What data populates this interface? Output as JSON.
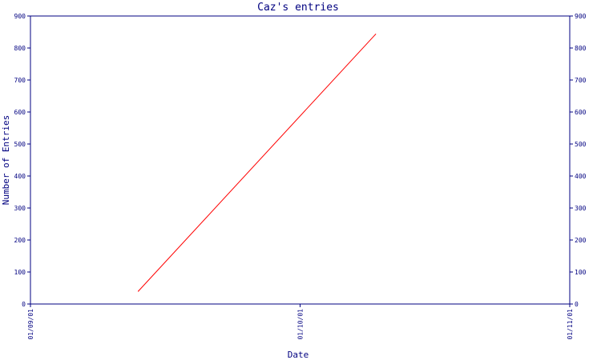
{
  "chart_data": {
    "type": "line",
    "title": "Caz's entries",
    "xlabel": "Date",
    "ylabel": "Number of Entries",
    "x_ticks": [
      "01/09/01",
      "01/10/01",
      "01/11/01"
    ],
    "y_ticks": [
      "0",
      "100",
      "200",
      "300",
      "400",
      "500",
      "600",
      "700",
      "800",
      "900"
    ],
    "xlim": [
      "01/09/01",
      "01/11/01"
    ],
    "ylim": [
      0,
      900
    ],
    "grid": false,
    "legend": "none",
    "y_axis_mirrored_right": true,
    "series": [
      {
        "color": "#ff0000",
        "x": [
          "01/09/01 + 12.2 days",
          "01/10/01 + 8.5 days"
        ],
        "points": [
          {
            "x_frac": 0.2,
            "y": 40
          },
          {
            "x_frac": 0.64,
            "y": 843
          }
        ]
      }
    ]
  }
}
